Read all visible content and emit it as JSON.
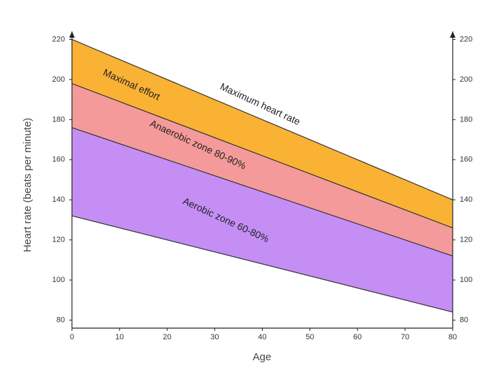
{
  "chart_data": {
    "type": "area",
    "x_label": "Age",
    "y_label": "Heart rate (beats per minute)",
    "x": [
      0,
      80
    ],
    "xlim": [
      0,
      80
    ],
    "xticks": [
      0,
      10,
      20,
      30,
      40,
      50,
      60,
      70,
      80
    ],
    "ylim": [
      76,
      224
    ],
    "yticks": [
      80,
      100,
      120,
      140,
      160,
      180,
      200,
      220
    ],
    "series": [
      {
        "name": "Maximum heart rate",
        "color": "#333333",
        "values": [
          220,
          140
        ]
      },
      {
        "name": "Maximal effort",
        "color": "#f9b234",
        "values": [
          198,
          126
        ]
      },
      {
        "name": "Anaerobic zone 80-90%",
        "color": "#f59a9a",
        "values": [
          176,
          112
        ]
      },
      {
        "name": "Aerobic zone 60-80%",
        "color": "#c48ef5",
        "values": [
          132,
          84
        ]
      }
    ]
  }
}
